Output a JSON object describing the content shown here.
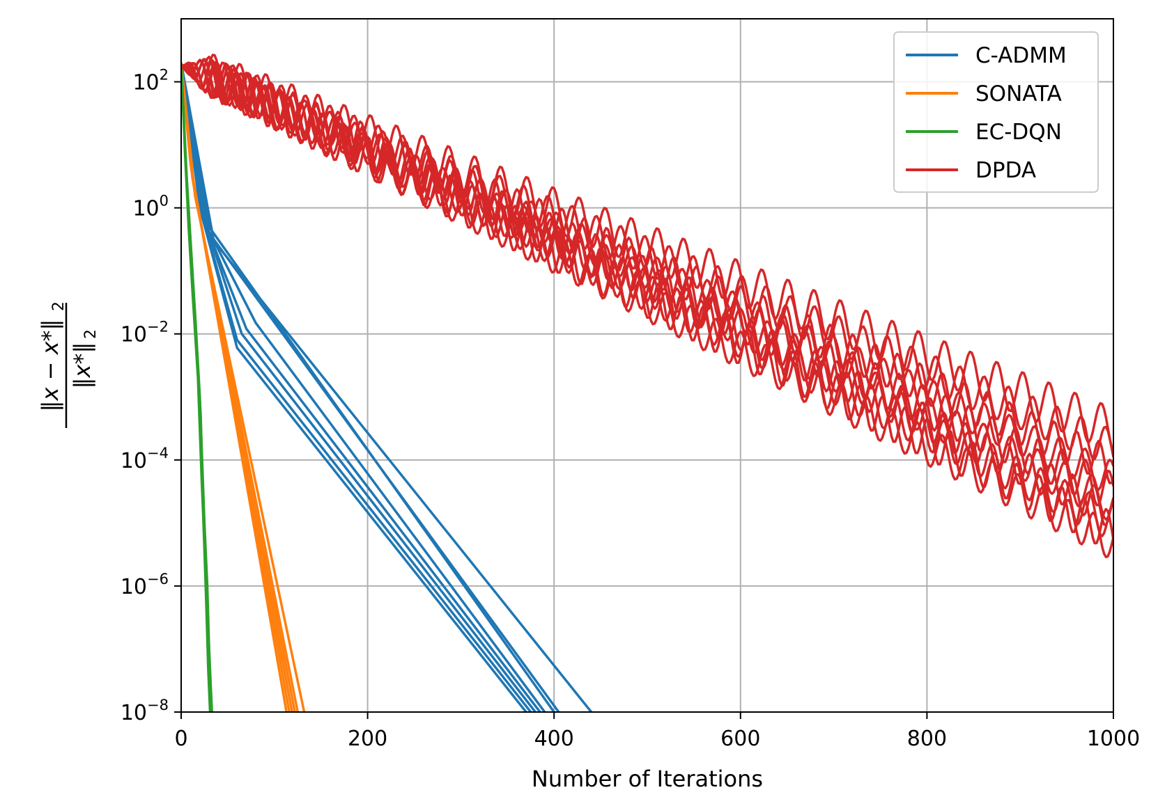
{
  "chart_data": {
    "type": "line",
    "title": "",
    "xlabel": "Number of Iterations",
    "ylabel": "‖x − x*‖₂ / ‖x*‖₂",
    "ylabel_parts": {
      "numerator": "‖x − x*‖",
      "denominator": "‖x*‖",
      "subscript": "2"
    },
    "xlim": [
      0,
      1000
    ],
    "ylim": [
      1e-08,
      1000
    ],
    "yscale": "log",
    "grid": true,
    "legend_position": "top-right",
    "x_ticks": [
      0,
      200,
      400,
      600,
      800,
      1000
    ],
    "x_tick_labels": [
      "0",
      "200",
      "400",
      "600",
      "800",
      "1000"
    ],
    "y_ticks": [
      2,
      0,
      -2,
      -4,
      -6,
      -8
    ],
    "y_tick_base": "10",
    "y_tick_exponents": [
      "2",
      "0",
      "−2",
      "−4",
      "−6",
      "−8"
    ],
    "series": [
      {
        "name": "C-ADMM",
        "color": "#1f77b4",
        "runs": [
          {
            "x": [
              0,
              20,
              60,
              370
            ],
            "y": [
              200,
              1.0,
              0.006,
              1e-08
            ]
          },
          {
            "x": [
              0,
              22,
              60,
              375
            ],
            "y": [
              200,
              0.8,
              0.008,
              1e-08
            ]
          },
          {
            "x": [
              0,
              24,
              65,
              380
            ],
            "y": [
              200,
              0.7,
              0.01,
              1e-08
            ]
          },
          {
            "x": [
              0,
              25,
              70,
              385
            ],
            "y": [
              200,
              0.6,
              0.012,
              1e-08
            ]
          },
          {
            "x": [
              0,
              26,
              80,
              390
            ],
            "y": [
              200,
              0.55,
              0.015,
              1e-08
            ]
          },
          {
            "x": [
              0,
              30,
              400
            ],
            "y": [
              200,
              0.5,
              1e-08
            ]
          },
          {
            "x": [
              0,
              30,
              405
            ],
            "y": [
              200,
              0.4,
              1e-08
            ]
          },
          {
            "x": [
              0,
              35,
              440
            ],
            "y": [
              200,
              0.3,
              1e-08
            ]
          }
        ]
      },
      {
        "name": "SONATA",
        "color": "#ff7f0e",
        "runs": [
          {
            "x": [
              0,
              10,
              113
            ],
            "y": [
              200,
              5,
              1e-08
            ]
          },
          {
            "x": [
              0,
              11,
              116
            ],
            "y": [
              200,
              4,
              1e-08
            ]
          },
          {
            "x": [
              0,
              12,
              119
            ],
            "y": [
              200,
              3,
              1e-08
            ]
          },
          {
            "x": [
              0,
              13,
              122
            ],
            "y": [
              200,
              2.5,
              1e-08
            ]
          },
          {
            "x": [
              0,
              14,
              125
            ],
            "y": [
              200,
              2,
              1e-08
            ]
          },
          {
            "x": [
              0,
              15,
              132
            ],
            "y": [
              200,
              1.5,
              1e-08
            ]
          }
        ]
      },
      {
        "name": "EC-DQN",
        "color": "#2ca02c",
        "runs": [
          {
            "x": [
              0,
              5,
              10,
              15,
              20,
              25,
              28,
              30,
              33
            ],
            "y": [
              200,
              5,
              0.3,
              0.02,
              0.001,
              1e-05,
              1e-06,
              1e-07,
              1e-08
            ]
          },
          {
            "x": [
              0,
              4,
              8,
              12,
              18,
              22,
              26,
              30,
              32
            ],
            "y": [
              200,
              8,
              0.5,
              0.05,
              0.002,
              5e-05,
              2e-06,
              1e-07,
              1e-08
            ]
          },
          {
            "x": [
              0,
              6,
              12,
              16,
              21,
              24,
              27,
              29,
              31
            ],
            "y": [
              200,
              3,
              0.1,
              0.01,
              0.0005,
              1e-05,
              5e-07,
              5e-08,
              1e-08
            ]
          }
        ]
      },
      {
        "name": "DPDA",
        "color": "#d62728",
        "description": "many runs with oscillating linear decay on log scale",
        "runs": [
          {
            "start": 200,
            "end": 0.0003,
            "amp": 0.35,
            "period": 28
          },
          {
            "start": 200,
            "end": 0.00015,
            "amp": 0.3,
            "period": 26
          },
          {
            "start": 200,
            "end": 8e-05,
            "amp": 0.3,
            "period": 24
          },
          {
            "start": 200,
            "end": 5e-05,
            "amp": 0.28,
            "period": 27
          },
          {
            "start": 200,
            "end": 3e-05,
            "amp": 0.32,
            "period": 25
          },
          {
            "start": 200,
            "end": 2e-05,
            "amp": 0.3,
            "period": 29
          },
          {
            "start": 200,
            "end": 1.5e-05,
            "amp": 0.28,
            "period": 23
          },
          {
            "start": 200,
            "end": 1e-05,
            "amp": 0.3,
            "period": 26
          },
          {
            "start": 200,
            "end": 7e-06,
            "amp": 0.32,
            "period": 24
          },
          {
            "start": 200,
            "end": 5e-06,
            "amp": 0.3,
            "period": 27
          }
        ]
      }
    ]
  }
}
